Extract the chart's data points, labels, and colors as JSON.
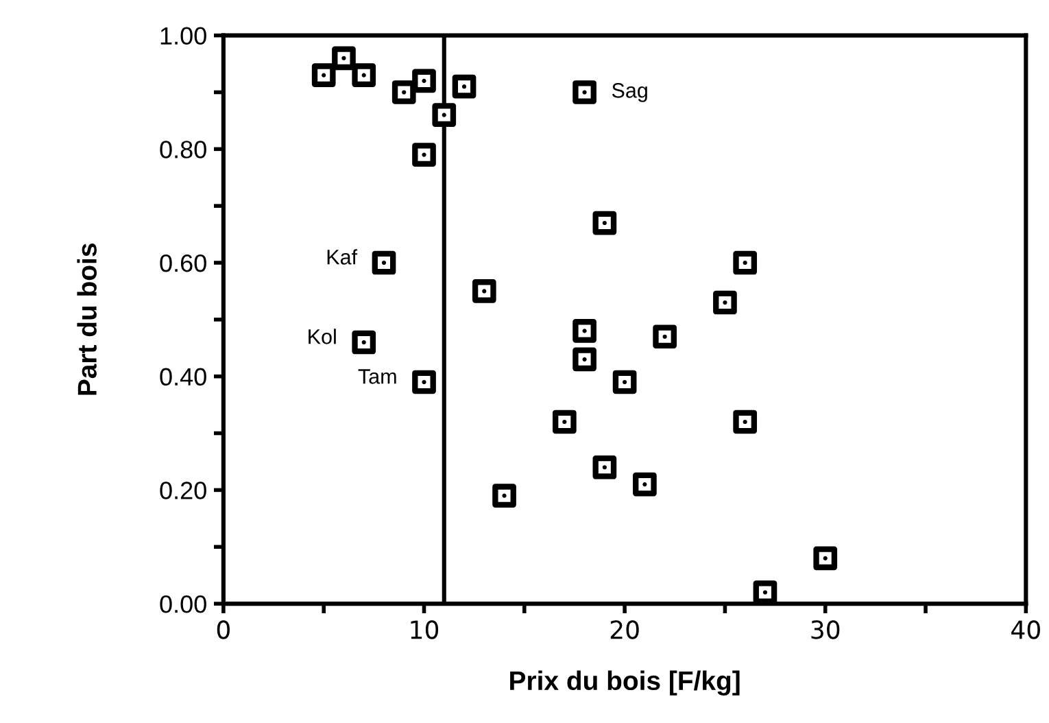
{
  "chart_data": {
    "type": "scatter",
    "xlabel": "Prix du bois [F/kg]",
    "ylabel": "Part du bois",
    "x": [
      5,
      6,
      7,
      9,
      10,
      12,
      11,
      10,
      18,
      19,
      8,
      13,
      18,
      18,
      7,
      26,
      25,
      22,
      10,
      20,
      17,
      19,
      21,
      14,
      26,
      30,
      27
    ],
    "series": [
      {
        "color": "#000000",
        "values": [
          0.93,
          0.96,
          0.93,
          0.9,
          0.92,
          0.91,
          0.86,
          0.79,
          0.9,
          0.67,
          0.6,
          0.55,
          0.48,
          0.43,
          0.46,
          0.6,
          0.53,
          0.47,
          0.39,
          0.39,
          0.32,
          0.24,
          0.21,
          0.19,
          0.32,
          0.08,
          0.02
        ]
      }
    ],
    "marker": "square",
    "xlim": [
      0,
      40
    ],
    "ylim": [
      0,
      1
    ],
    "xticks": [
      0,
      {
        "value": 5,
        "label": null
      },
      10,
      {
        "value": 15,
        "label": null
      },
      20,
      {
        "value": 25,
        "label": null
      },
      30,
      {
        "value": 35,
        "label": null
      },
      40
    ],
    "yticks": [
      {
        "value": 0,
        "label": "0.00"
      },
      {
        "value": 0.1,
        "label": null
      },
      {
        "value": 0.2,
        "label": "0.20"
      },
      {
        "value": 0.3,
        "label": null
      },
      {
        "value": 0.4,
        "label": "0.40"
      },
      {
        "value": 0.5,
        "label": null
      },
      {
        "value": 0.6,
        "label": "0.60"
      },
      {
        "value": 0.7,
        "label": null
      },
      {
        "value": 0.8,
        "label": "0.80"
      },
      {
        "value": 0.9,
        "label": null
      },
      {
        "value": 1.0,
        "label": "1.00"
      }
    ],
    "ref_lines": [
      {
        "axis": "x",
        "value": 11,
        "color": "#000000"
      }
    ],
    "annotations": [
      {
        "text": "Sag",
        "x": 18,
        "y": 0.9
      },
      {
        "text": "Kaf",
        "x": 8,
        "y": 0.6
      },
      {
        "text": "Kol",
        "x": 7,
        "y": 0.46
      },
      {
        "text": "Tam",
        "x": 10,
        "y": 0.39
      }
    ],
    "grid": false,
    "legend": false
  }
}
